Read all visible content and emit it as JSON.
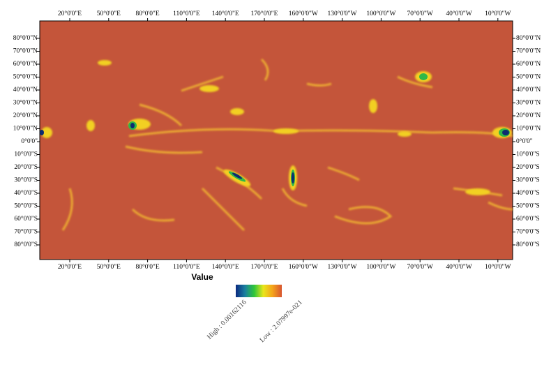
{
  "map": {
    "longitude_labels": [
      "20°0'0\"E",
      "50°0'0\"E",
      "80°0'0\"E",
      "110°0'0\"E",
      "140°0'0\"E",
      "170°0'0\"E",
      "160°0'0\"W",
      "130°0'0\"W",
      "100°0'0\"W",
      "70°0'0\"W",
      "40°0'0\"W",
      "10°0'0\"W"
    ],
    "latitude_labels": [
      "80°0'0\"N",
      "70°0'0\"N",
      "60°0'0\"N",
      "50°0'0\"N",
      "40°0'0\"N",
      "30°0'0\"N",
      "20°0'0\"N",
      "10°0'0\"N",
      "0°0'0\"",
      "10°0'0\"S",
      "20°0'0\"S",
      "30°0'0\"S",
      "40°0'0\"S",
      "50°0'0\"S",
      "60°0'0\"S",
      "70°0'0\"S",
      "80°0'0\"S"
    ]
  },
  "legend": {
    "title": "Value",
    "high": "High : 0.00162116",
    "low": "Low : 2.07997e-021"
  }
}
